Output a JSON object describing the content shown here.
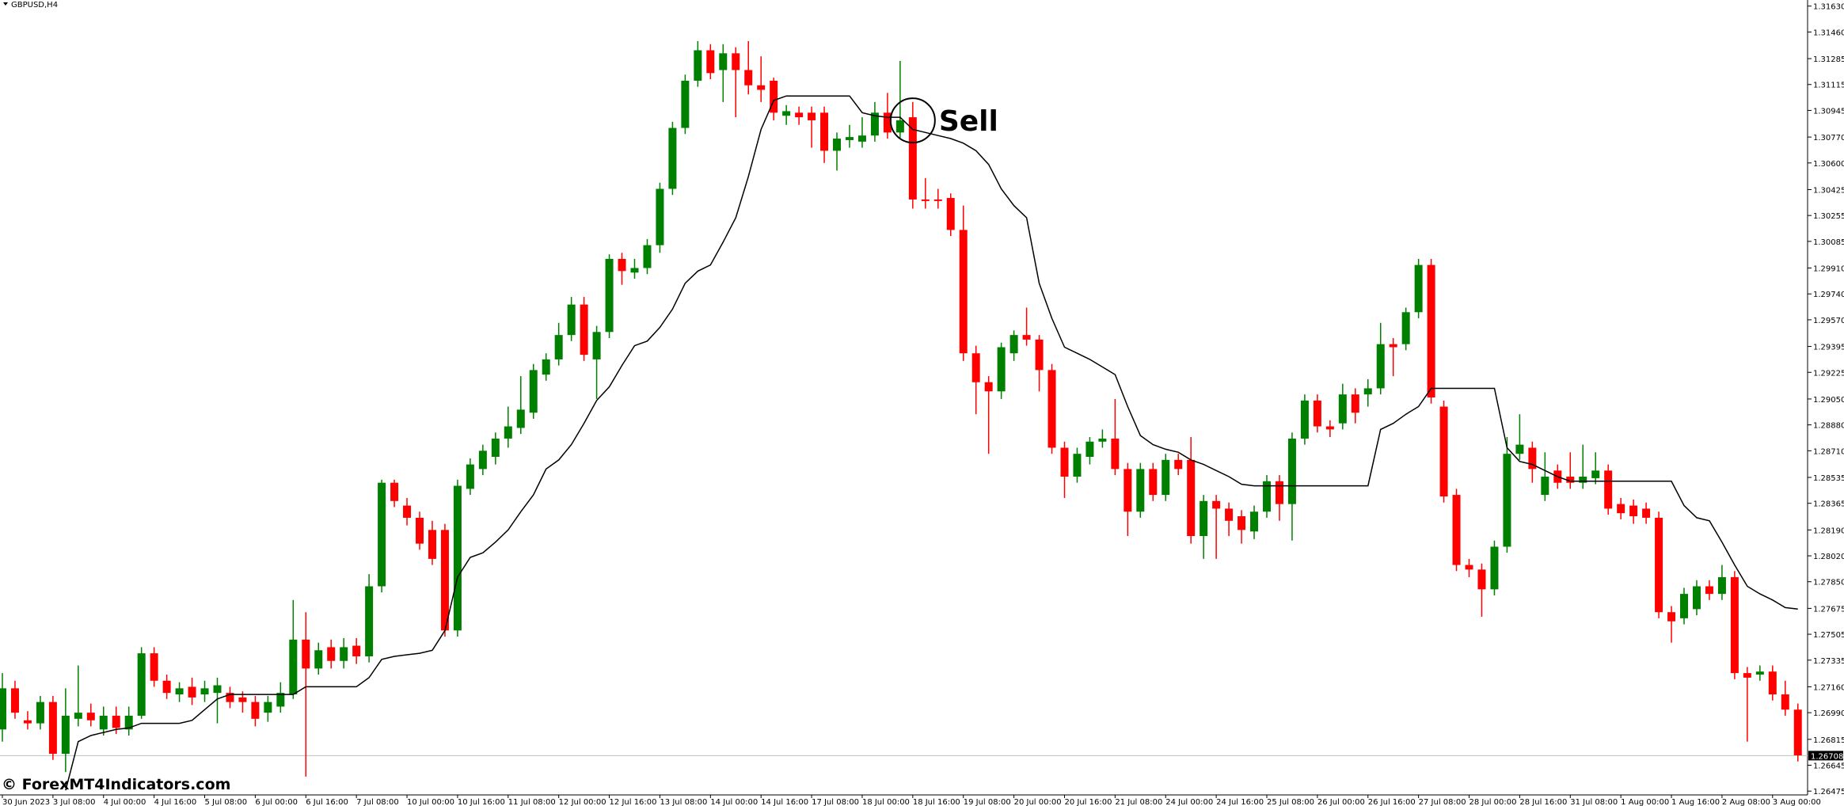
{
  "chart_data": {
    "type": "candlestick",
    "title": "GBPUSD,H4",
    "watermark": "© ForexMT4Indicators.com",
    "up_color": "#008000",
    "down_color": "#ff0000",
    "candles": [
      [
        1.2688,
        1.2725,
        1.268,
        1.2715
      ],
      [
        1.2715,
        1.272,
        1.2695,
        1.2699
      ],
      [
        1.2694,
        1.27,
        1.2688,
        1.2692
      ],
      [
        1.2692,
        1.271,
        1.2688,
        1.2706
      ],
      [
        1.2706,
        1.271,
        1.2668,
        1.2672
      ],
      [
        1.2672,
        1.2715,
        1.266,
        1.2697
      ],
      [
        1.2695,
        1.273,
        1.269,
        1.2699
      ],
      [
        1.2699,
        1.2705,
        1.269,
        1.2694
      ],
      [
        1.2688,
        1.2703,
        1.2684,
        1.2697
      ],
      [
        1.2697,
        1.2703,
        1.2685,
        1.2689
      ],
      [
        1.2688,
        1.2703,
        1.2684,
        1.2697
      ],
      [
        1.2697,
        1.2742,
        1.2695,
        1.2738
      ],
      [
        1.2738,
        1.2742,
        1.2716,
        1.272
      ],
      [
        1.272,
        1.2724,
        1.2708,
        1.2712
      ],
      [
        1.2711,
        1.2719,
        1.2706,
        1.2715
      ],
      [
        1.2716,
        1.2722,
        1.2704,
        1.2709
      ],
      [
        1.2711,
        1.272,
        1.2706,
        1.2715
      ],
      [
        1.2712,
        1.2722,
        1.2692,
        1.2717
      ],
      [
        1.2712,
        1.2716,
        1.2702,
        1.2706
      ],
      [
        1.2709,
        1.2713,
        1.2699,
        1.2706
      ],
      [
        1.2706,
        1.271,
        1.269,
        1.2695
      ],
      [
        1.2699,
        1.271,
        1.2693,
        1.2706
      ],
      [
        1.2703,
        1.2719,
        1.2699,
        1.2712
      ],
      [
        1.2711,
        1.2773,
        1.2708,
        1.2747
      ],
      [
        1.2747,
        1.2765,
        1.2657,
        1.2728
      ],
      [
        1.2728,
        1.2745,
        1.2724,
        1.274
      ],
      [
        1.2742,
        1.2747,
        1.2728,
        1.2733
      ],
      [
        1.2733,
        1.2748,
        1.2728,
        1.2742
      ],
      [
        1.2743,
        1.2748,
        1.2731,
        1.2736
      ],
      [
        1.2736,
        1.279,
        1.2732,
        1.2782
      ],
      [
        1.2782,
        1.2852,
        1.2778,
        1.285
      ],
      [
        1.285,
        1.2852,
        1.2834,
        1.2838
      ],
      [
        1.2835,
        1.284,
        1.2822,
        1.2827
      ],
      [
        1.2827,
        1.2831,
        1.2806,
        1.281
      ],
      [
        1.2819,
        1.2825,
        1.2796,
        1.28
      ],
      [
        1.2819,
        1.2823,
        1.2749,
        1.2753
      ],
      [
        1.2753,
        1.2852,
        1.2749,
        1.2848
      ],
      [
        1.2846,
        1.2866,
        1.2842,
        1.2862
      ],
      [
        1.2859,
        1.2875,
        1.2855,
        1.2871
      ],
      [
        1.2867,
        1.2883,
        1.2862,
        1.2879
      ],
      [
        1.2879,
        1.29,
        1.2873,
        1.2887
      ],
      [
        1.2886,
        1.292,
        1.2882,
        1.2898
      ],
      [
        1.2896,
        1.2928,
        1.2892,
        1.2924
      ],
      [
        1.2921,
        1.2935,
        1.2917,
        1.2931
      ],
      [
        1.2931,
        1.2955,
        1.2927,
        1.2947
      ],
      [
        1.2947,
        1.2972,
        1.2943,
        1.2967
      ],
      [
        1.2967,
        1.2972,
        1.293,
        1.2934
      ],
      [
        1.2931,
        1.2953,
        1.2905,
        1.2949
      ],
      [
        1.2949,
        1.3,
        1.2945,
        1.2997
      ],
      [
        1.2997,
        1.3001,
        1.298,
        1.2989
      ],
      [
        1.2988,
        1.2997,
        1.2984,
        1.2991
      ],
      [
        1.2991,
        1.301,
        1.2987,
        1.3006
      ],
      [
        1.3006,
        1.3047,
        1.3001,
        1.3043
      ],
      [
        1.3043,
        1.3087,
        1.3039,
        1.3083
      ],
      [
        1.3083,
        1.3118,
        1.3079,
        1.3114
      ],
      [
        1.3114,
        1.314,
        1.311,
        1.3134
      ],
      [
        1.3134,
        1.3138,
        1.3115,
        1.3119
      ],
      [
        1.3121,
        1.3138,
        1.31,
        1.3132
      ],
      [
        1.3132,
        1.3136,
        1.309,
        1.3121
      ],
      [
        1.3121,
        1.314,
        1.3105,
        1.3111
      ],
      [
        1.3111,
        1.313,
        1.31,
        1.3108
      ],
      [
        1.3114,
        1.3116,
        1.3088,
        1.3093
      ],
      [
        1.3091,
        1.3098,
        1.3085,
        1.3094
      ],
      [
        1.3093,
        1.3097,
        1.3085,
        1.309
      ],
      [
        1.3093,
        1.3097,
        1.307,
        1.3088
      ],
      [
        1.3093,
        1.3097,
        1.306,
        1.3068
      ],
      [
        1.3068,
        1.308,
        1.3055,
        1.3076
      ],
      [
        1.3075,
        1.3085,
        1.307,
        1.3077
      ],
      [
        1.3074,
        1.309,
        1.307,
        1.3078
      ],
      [
        1.3078,
        1.31,
        1.3074,
        1.3093
      ],
      [
        1.3093,
        1.3106,
        1.3076,
        1.308
      ],
      [
        1.308,
        1.3127,
        1.3076,
        1.3088
      ],
      [
        1.309,
        1.31,
        1.303,
        1.3036
      ],
      [
        1.3036,
        1.305,
        1.303,
        1.3035
      ],
      [
        1.3036,
        1.3043,
        1.303,
        1.3035
      ],
      [
        1.3037,
        1.304,
        1.3012,
        1.3016
      ],
      [
        1.3016,
        1.3032,
        1.293,
        1.2935
      ],
      [
        1.2935,
        1.294,
        1.2895,
        1.2916
      ],
      [
        1.2916,
        1.292,
        1.2869,
        1.291
      ],
      [
        1.291,
        1.2942,
        1.2905,
        1.2939
      ],
      [
        1.2935,
        1.295,
        1.293,
        1.2947
      ],
      [
        1.2947,
        1.2965,
        1.294,
        1.2944
      ],
      [
        1.2944,
        1.2947,
        1.291,
        1.2924
      ],
      [
        1.2924,
        1.2928,
        1.2869,
        1.2873
      ],
      [
        1.2873,
        1.2877,
        1.284,
        1.2854
      ],
      [
        1.2854,
        1.2873,
        1.285,
        1.2869
      ],
      [
        1.2867,
        1.288,
        1.2862,
        1.2877
      ],
      [
        1.2877,
        1.2885,
        1.2873,
        1.2879
      ],
      [
        1.2879,
        1.2905,
        1.2855,
        1.2859
      ],
      [
        1.2859,
        1.2863,
        1.2815,
        1.2831
      ],
      [
        1.2831,
        1.2863,
        1.2827,
        1.2859
      ],
      [
        1.2859,
        1.2863,
        1.2838,
        1.2842
      ],
      [
        1.2842,
        1.2869,
        1.2838,
        1.2865
      ],
      [
        1.2865,
        1.2869,
        1.2855,
        1.2859
      ],
      [
        1.2865,
        1.288,
        1.281,
        1.2815
      ],
      [
        1.2815,
        1.2842,
        1.28,
        1.2838
      ],
      [
        1.2838,
        1.2842,
        1.28,
        1.2833
      ],
      [
        1.2833,
        1.2837,
        1.2815,
        1.2825
      ],
      [
        1.2828,
        1.2832,
        1.281,
        1.2819
      ],
      [
        1.2818,
        1.2835,
        1.2813,
        1.2831
      ],
      [
        1.2831,
        1.2855,
        1.2827,
        1.2851
      ],
      [
        1.2851,
        1.2855,
        1.2825,
        1.2836
      ],
      [
        1.2836,
        1.2883,
        1.2812,
        1.2879
      ],
      [
        1.2879,
        1.2908,
        1.2875,
        1.2904
      ],
      [
        1.2904,
        1.2908,
        1.2883,
        1.2887
      ],
      [
        1.2887,
        1.2891,
        1.288,
        1.2885
      ],
      [
        1.2889,
        1.2915,
        1.2885,
        1.2908
      ],
      [
        1.2908,
        1.2912,
        1.2889,
        1.2896
      ],
      [
        1.2908,
        1.2918,
        1.29,
        1.2912
      ],
      [
        1.2912,
        1.2955,
        1.2908,
        1.2941
      ],
      [
        1.2941,
        1.2945,
        1.292,
        1.2939
      ],
      [
        1.2941,
        1.2965,
        1.2937,
        1.2962
      ],
      [
        1.2962,
        1.2997,
        1.2958,
        1.2993
      ],
      [
        1.2993,
        1.2997,
        1.2902,
        1.2906
      ],
      [
        1.29,
        1.2904,
        1.2837,
        1.2841
      ],
      [
        1.2842,
        1.2846,
        1.2792,
        1.2796
      ],
      [
        1.2796,
        1.28,
        1.2788,
        1.2793
      ],
      [
        1.2793,
        1.2797,
        1.2762,
        1.278
      ],
      [
        1.278,
        1.2812,
        1.2776,
        1.2808
      ],
      [
        1.2808,
        1.288,
        1.2804,
        1.2869
      ],
      [
        1.2869,
        1.2895,
        1.2865,
        1.2875
      ],
      [
        1.2873,
        1.2877,
        1.285,
        1.2859
      ],
      [
        1.2842,
        1.287,
        1.2838,
        1.2854
      ],
      [
        1.2858,
        1.2862,
        1.2846,
        1.285
      ],
      [
        1.2854,
        1.287,
        1.2846,
        1.285
      ],
      [
        1.285,
        1.2875,
        1.2846,
        1.2854
      ],
      [
        1.2853,
        1.287,
        1.2849,
        1.2858
      ],
      [
        1.2858,
        1.2862,
        1.2829,
        1.2833
      ],
      [
        1.2836,
        1.284,
        1.2826,
        1.283
      ],
      [
        1.2835,
        1.2839,
        1.2823,
        1.2828
      ],
      [
        1.2833,
        1.2837,
        1.2823,
        1.2827
      ],
      [
        1.2827,
        1.2831,
        1.2761,
        1.2765
      ],
      [
        1.2765,
        1.2769,
        1.2745,
        1.2759
      ],
      [
        1.2761,
        1.2781,
        1.2757,
        1.2777
      ],
      [
        1.2767,
        1.2786,
        1.2763,
        1.2782
      ],
      [
        1.2782,
        1.2786,
        1.2773,
        1.2777
      ],
      [
        1.2777,
        1.2796,
        1.2773,
        1.2788
      ],
      [
        1.2788,
        1.2792,
        1.2721,
        1.2725
      ],
      [
        1.2725,
        1.2729,
        1.268,
        1.2722
      ],
      [
        1.2724,
        1.273,
        1.272,
        1.2726
      ],
      [
        1.2726,
        1.273,
        1.2707,
        1.2711
      ],
      [
        1.2711,
        1.272,
        1.2697,
        1.2701
      ],
      [
        1.2701,
        1.2705,
        1.2667,
        1.2671
      ]
    ],
    "indicator": {
      "color": "#000000",
      "values": [
        null,
        null,
        null,
        null,
        null,
        1.2648,
        1.268,
        1.2684,
        1.2686,
        1.2688,
        1.2689,
        1.2692,
        1.2692,
        1.2692,
        1.2692,
        1.2694,
        1.2701,
        1.2708,
        1.2711,
        1.2711,
        1.2711,
        1.2711,
        1.2711,
        1.2711,
        1.2716,
        1.2716,
        1.2716,
        1.2716,
        1.2716,
        1.2722,
        1.2734,
        1.2736,
        1.2737,
        1.2738,
        1.274,
        1.2753,
        1.2788,
        1.2801,
        1.2804,
        1.2811,
        1.2819,
        1.2831,
        1.2842,
        1.2859,
        1.2865,
        1.2875,
        1.2889,
        1.2904,
        1.2913,
        1.2927,
        1.294,
        1.2943,
        1.2952,
        1.2964,
        1.2981,
        1.2989,
        1.2993,
        1.3008,
        1.3024,
        1.3051,
        1.3082,
        1.3101,
        1.3104,
        1.3104,
        1.3104,
        1.3104,
        1.3104,
        1.3104,
        1.3093,
        1.3091,
        1.309,
        1.309,
        1.3082,
        1.308,
        1.3078,
        1.3076,
        1.3073,
        1.3068,
        1.3059,
        1.3043,
        1.3032,
        1.3024,
        1.2981,
        1.2958,
        1.2939,
        1.2935,
        1.2931,
        1.2926,
        1.2921,
        1.29,
        1.2881,
        1.2875,
        1.2872,
        1.287,
        1.2865,
        1.2862,
        1.2858,
        1.2854,
        1.2849,
        1.2848,
        1.2848,
        1.2848,
        1.2848,
        1.2848,
        1.2848,
        1.2848,
        1.2848,
        1.2848,
        1.2848,
        1.2885,
        1.2889,
        1.2895,
        1.29,
        1.2912,
        1.2912,
        1.2912,
        1.2912,
        1.2912,
        1.2912,
        1.2873,
        1.2864,
        1.2862,
        1.2858,
        1.2854,
        1.2851,
        1.2851,
        1.2851,
        1.2851,
        1.2851,
        1.2851,
        1.2851,
        1.2851,
        1.2851,
        1.2835,
        1.2827,
        1.2825,
        1.2811,
        1.2796,
        1.2782,
        1.2777,
        1.2773,
        1.2768,
        1.2767
      ]
    },
    "ylim": [
      1.2645,
      1.3167
    ],
    "yticks": [
      {
        "value": 1.3163,
        "label": "1.31630"
      },
      {
        "value": 1.3146,
        "label": "1.31460"
      },
      {
        "value": 1.31285,
        "label": "1.31285"
      },
      {
        "value": 1.31115,
        "label": "1.31115"
      },
      {
        "value": 1.30945,
        "label": "1.30945"
      },
      {
        "value": 1.3077,
        "label": "1.30770"
      },
      {
        "value": 1.306,
        "label": "1.30600"
      },
      {
        "value": 1.30425,
        "label": "1.30425"
      },
      {
        "value": 1.30255,
        "label": "1.30255"
      },
      {
        "value": 1.30085,
        "label": "1.30085"
      },
      {
        "value": 1.2991,
        "label": "1.29910"
      },
      {
        "value": 1.2974,
        "label": "1.29740"
      },
      {
        "value": 1.2957,
        "label": "1.29570"
      },
      {
        "value": 1.29395,
        "label": "1.29395"
      },
      {
        "value": 1.29225,
        "label": "1.29225"
      },
      {
        "value": 1.2905,
        "label": "1.29050"
      },
      {
        "value": 1.2888,
        "label": "1.28880"
      },
      {
        "value": 1.2871,
        "label": "1.28710"
      },
      {
        "value": 1.28535,
        "label": "1.28535"
      },
      {
        "value": 1.28365,
        "label": "1.28365"
      },
      {
        "value": 1.2819,
        "label": "1.28190"
      },
      {
        "value": 1.2802,
        "label": "1.28020"
      },
      {
        "value": 1.2785,
        "label": "1.27850"
      },
      {
        "value": 1.27675,
        "label": "1.27675"
      },
      {
        "value": 1.27505,
        "label": "1.27505"
      },
      {
        "value": 1.27335,
        "label": "1.27335"
      },
      {
        "value": 1.2716,
        "label": "1.27160"
      },
      {
        "value": 1.2699,
        "label": "1.26990"
      },
      {
        "value": 1.26815,
        "label": "1.26815"
      },
      {
        "value": 1.26645,
        "label": "1.26645"
      },
      {
        "value": 1.26475,
        "label": "1.26475"
      }
    ],
    "current_price": {
      "value": 1.26708,
      "label": "1.26708"
    },
    "xtick_labels": [
      "30 Jun 2023",
      "3 Jul 08:00",
      "4 Jul 00:00",
      "4 Jul 16:00",
      "5 Jul 08:00",
      "6 Jul 00:00",
      "6 Jul 16:00",
      "7 Jul 08:00",
      "10 Jul 00:00",
      "10 Jul 16:00",
      "11 Jul 08:00",
      "12 Jul 00:00",
      "12 Jul 16:00",
      "13 Jul 08:00",
      "14 Jul 00:00",
      "14 Jul 16:00",
      "17 Jul 08:00",
      "18 Jul 00:00",
      "18 Jul 16:00",
      "19 Jul 08:00",
      "20 Jul 00:00",
      "20 Jul 16:00",
      "21 Jul 08:00",
      "24 Jul 00:00",
      "24 Jul 16:00",
      "25 Jul 08:00",
      "26 Jul 00:00",
      "26 Jul 16:00",
      "27 Jul 08:00",
      "28 Jul 00:00",
      "28 Jul 16:00",
      "31 Jul 08:00",
      "1 Aug 00:00",
      "1 Aug 16:00",
      "2 Aug 08:00",
      "3 Aug 00:00"
    ],
    "annotation": "Sell"
  }
}
